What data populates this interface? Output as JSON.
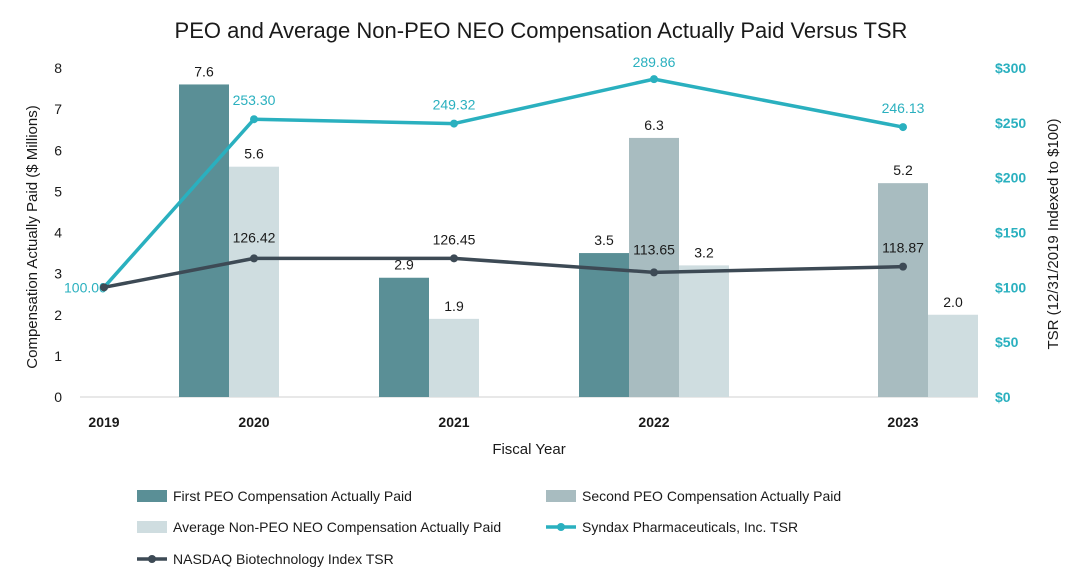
{
  "chart_data": {
    "type": "bar",
    "title": "PEO and Average Non-PEO NEO Compensation Actually Paid Versus TSR",
    "xlabel": "Fiscal Year",
    "ylabel": "Compensation Actually Paid ($ Millions)",
    "y2label": "TSR (12/31/2019 Indexed to $100)",
    "categories": [
      "2019",
      "2020",
      "2021",
      "2022",
      "2023"
    ],
    "ylim": [
      0,
      8
    ],
    "yticks": [
      "0",
      "1",
      "2",
      "3",
      "4",
      "5",
      "6",
      "7",
      "8"
    ],
    "y2lim": [
      0,
      300
    ],
    "y2ticks": [
      "$0",
      "$50",
      "$100",
      "$150",
      "$200",
      "$250",
      "$300"
    ],
    "bar_series": [
      {
        "name": "First PEO Compensation Actually Paid",
        "color": "#5a8f96",
        "values": [
          null,
          7.6,
          2.9,
          3.5,
          null
        ],
        "labels": [
          "",
          "7.6",
          "2.9",
          "3.5",
          ""
        ]
      },
      {
        "name": "Second PEO Compensation Actually Paid",
        "color": "#a8bcc0",
        "values": [
          null,
          null,
          null,
          6.3,
          5.2
        ],
        "labels": [
          "",
          "",
          "",
          "6.3",
          "5.2"
        ]
      },
      {
        "name": "Average Non-PEO NEO Compensation Actually Paid",
        "color": "#cfdde0",
        "values": [
          null,
          5.6,
          1.9,
          3.2,
          2.0
        ],
        "labels": [
          "",
          "5.6",
          "1.9",
          "3.2",
          "2.0"
        ]
      }
    ],
    "line_series": [
      {
        "name": "Syndax Pharmaceuticals, Inc. TSR",
        "color": "#2ab0bf",
        "values": [
          100.0,
          253.3,
          249.32,
          289.86,
          246.13
        ],
        "labels": [
          "100.00",
          "253.30",
          "249.32",
          "289.86",
          "246.13"
        ]
      },
      {
        "name": "NASDAQ Biotechnology Index TSR",
        "color": "#3d4a55",
        "values": [
          100.0,
          126.42,
          126.45,
          113.65,
          118.87
        ],
        "labels": [
          "",
          "126.42",
          "126.45",
          "113.65",
          "118.87"
        ]
      }
    ],
    "legend": [
      "First PEO Compensation Actually Paid",
      "Second PEO Compensation Actually Paid",
      "Average Non-PEO NEO Compensation Actually Paid",
      "Syndax Pharmaceuticals, Inc. TSR",
      "NASDAQ Biotechnology Index TSR"
    ],
    "legend_position": "bottom"
  }
}
